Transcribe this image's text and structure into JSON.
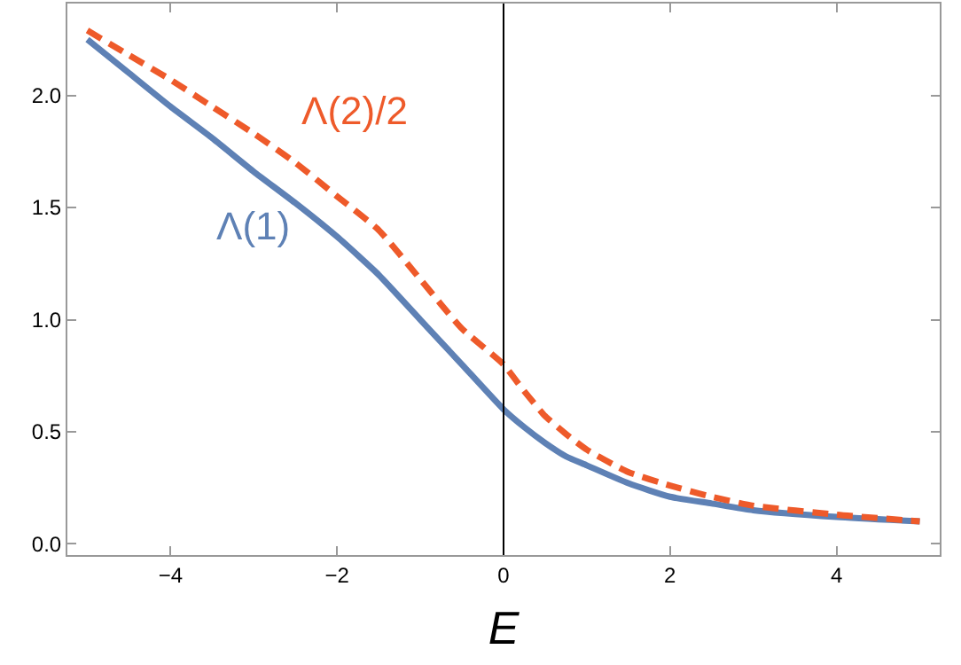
{
  "chart_data": {
    "type": "line",
    "xlabel": "E",
    "xlim": [
      -5.24,
      5.24
    ],
    "ylim": [
      -0.05,
      2.41
    ],
    "xticks": [
      {
        "value": -4,
        "label": "−4"
      },
      {
        "value": -2,
        "label": "−2"
      },
      0,
      2,
      4
    ],
    "yticks": [
      {
        "value": 0,
        "label": "0.0"
      },
      {
        "value": 0.5,
        "label": "0.5"
      },
      {
        "value": 1,
        "label": "1.0"
      },
      {
        "value": 1.5,
        "label": "1.5"
      },
      {
        "value": 2,
        "label": "2.0"
      }
    ],
    "x": [
      -5,
      -4.5,
      -4,
      -3.5,
      -3,
      -2.5,
      -2,
      -1.5,
      -1,
      -0.5,
      0,
      0.25,
      0.5,
      0.75,
      1,
      1.5,
      2,
      2.5,
      3,
      4,
      5
    ],
    "series": [
      {
        "name": "Λ(1)",
        "color": "#5e81b5",
        "line_style": "solid",
        "values": [
          2.25,
          2.1,
          1.95,
          1.81,
          1.66,
          1.52,
          1.37,
          1.2,
          1.0,
          0.8,
          0.6,
          0.52,
          0.45,
          0.39,
          0.35,
          0.27,
          0.21,
          0.18,
          0.15,
          0.12,
          0.1
        ]
      },
      {
        "name": "Λ(2)/2",
        "color": "#ee5a2a",
        "line_style": "dashed",
        "values": [
          2.29,
          2.18,
          2.07,
          1.95,
          1.83,
          1.7,
          1.55,
          1.4,
          1.18,
          0.96,
          0.8,
          0.68,
          0.57,
          0.49,
          0.42,
          0.32,
          0.26,
          0.21,
          0.17,
          0.13,
          0.1
        ]
      }
    ],
    "ref_lines": [
      {
        "axis": "x",
        "value": 0,
        "color": "#000000"
      }
    ],
    "grid": false,
    "legend": false,
    "marker": "none"
  }
}
